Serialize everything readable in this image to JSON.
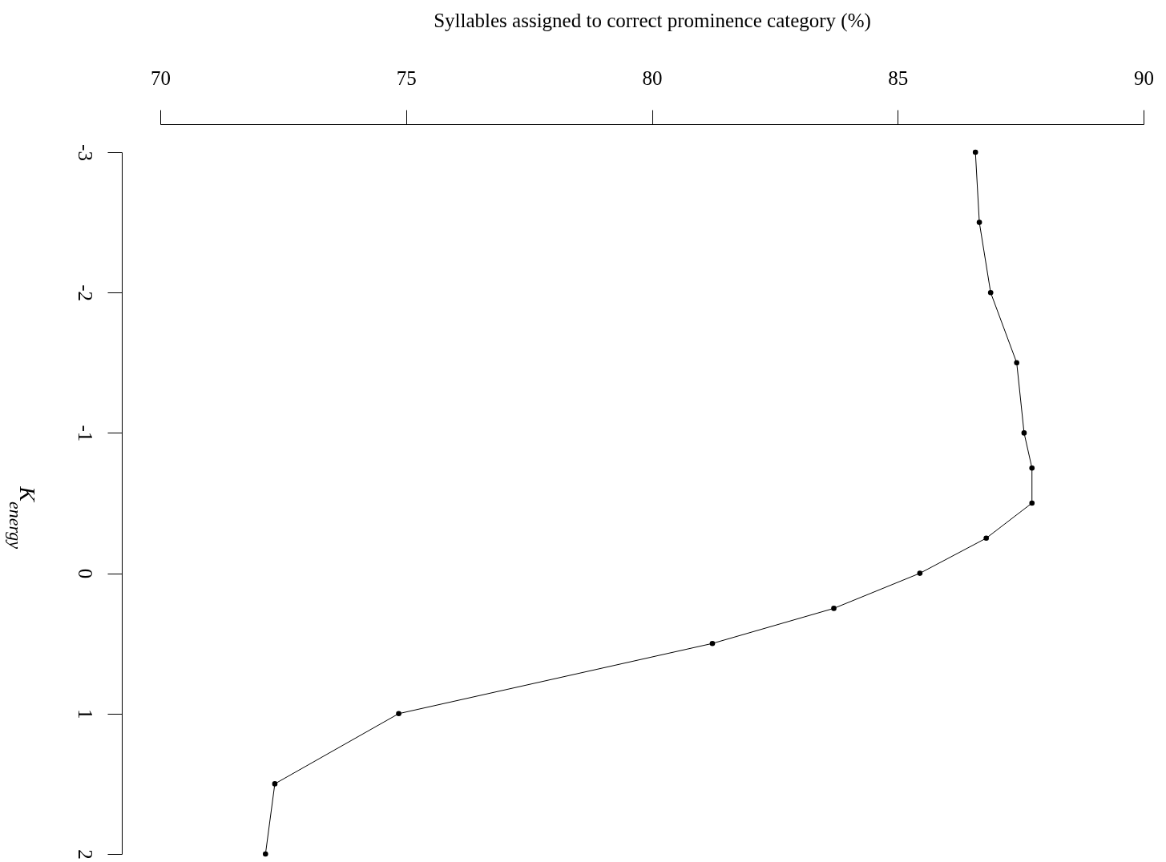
{
  "chart_data": {
    "type": "line",
    "xlabel": "Syllables assigned to correct prominence category (%)",
    "ylabel": "K$_{energy}$",
    "x": [
      86.58,
      86.66,
      86.89,
      87.42,
      87.57,
      87.73,
      87.73,
      86.8,
      85.45,
      83.7,
      81.23,
      74.85,
      72.33,
      72.14
    ],
    "values": [
      -3,
      -2.5,
      -2,
      -1.5,
      -1,
      -0.75,
      -0.5,
      -0.25,
      0,
      0.25,
      0.5,
      1,
      1.5,
      2
    ],
    "color": "#000000",
    "marker": "circle",
    "line_style": "solid",
    "xlim": [
      70,
      90
    ],
    "xticks": [
      70,
      75,
      80,
      85,
      90
    ],
    "ylim": [
      2,
      -3
    ],
    "yticks": [
      -3,
      -2,
      -1,
      0,
      1,
      2
    ]
  }
}
